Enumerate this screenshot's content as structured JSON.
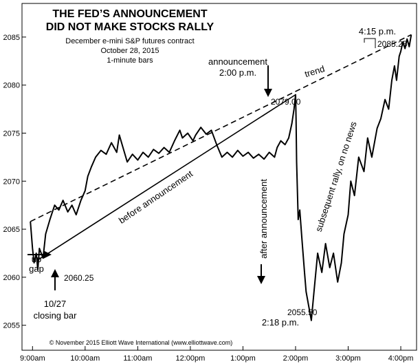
{
  "chart_data": {
    "type": "line",
    "title": [
      "THE FED’S ANNOUNCEMENT",
      "DID NOT MAKE STOCKS RALLY"
    ],
    "subtitle": [
      "December e-mini S&P futures contract",
      "October 28, 2015",
      "1-minute bars"
    ],
    "y_ticks": [
      2055,
      2060,
      2065,
      2070,
      2075,
      2080,
      2085
    ],
    "ylim": [
      2052.4,
      2088.5
    ],
    "x_tick_labels": [
      "9:00am",
      "10:00am",
      "11:00am",
      "12:00pm",
      "1:00pm",
      "2:00pm",
      "3:00pm",
      "4:00pm"
    ],
    "x_ticks_hours": [
      9,
      10,
      11,
      12,
      13,
      14,
      15,
      16
    ],
    "xlim": [
      8.8,
      16.3
    ],
    "grid": false,
    "series": [
      {
        "points": [
          [
            8.96,
            2065.8
          ],
          [
            9.0,
            2063.0
          ],
          [
            9.03,
            2061.5
          ],
          [
            9.07,
            2062.5
          ],
          [
            9.1,
            2060.8
          ],
          [
            9.13,
            2063.0
          ],
          [
            9.2,
            2062.0
          ],
          [
            9.25,
            2064.5
          ],
          [
            9.33,
            2066.0
          ],
          [
            9.42,
            2067.5
          ],
          [
            9.5,
            2067.0
          ],
          [
            9.58,
            2068.0
          ],
          [
            9.67,
            2066.8
          ],
          [
            9.75,
            2067.5
          ],
          [
            9.83,
            2066.5
          ],
          [
            9.92,
            2068.0
          ],
          [
            10.0,
            2069.0
          ],
          [
            10.05,
            2070.5
          ],
          [
            10.12,
            2071.5
          ],
          [
            10.2,
            2072.5
          ],
          [
            10.3,
            2073.2
          ],
          [
            10.4,
            2072.8
          ],
          [
            10.5,
            2074.0
          ],
          [
            10.6,
            2073.0
          ],
          [
            10.65,
            2074.8
          ],
          [
            10.72,
            2073.5
          ],
          [
            10.8,
            2072.0
          ],
          [
            10.9,
            2072.8
          ],
          [
            11.0,
            2072.2
          ],
          [
            11.1,
            2073.0
          ],
          [
            11.2,
            2072.5
          ],
          [
            11.3,
            2073.3
          ],
          [
            11.4,
            2072.9
          ],
          [
            11.5,
            2073.5
          ],
          [
            11.6,
            2073.0
          ],
          [
            11.7,
            2074.2
          ],
          [
            11.8,
            2075.3
          ],
          [
            11.85,
            2074.5
          ],
          [
            11.95,
            2075.0
          ],
          [
            12.05,
            2074.2
          ],
          [
            12.1,
            2074.8
          ],
          [
            12.2,
            2075.6
          ],
          [
            12.3,
            2074.9
          ],
          [
            12.4,
            2075.3
          ],
          [
            12.5,
            2073.8
          ],
          [
            12.6,
            2072.5
          ],
          [
            12.7,
            2073.0
          ],
          [
            12.8,
            2072.5
          ],
          [
            12.9,
            2073.2
          ],
          [
            13.0,
            2072.6
          ],
          [
            13.1,
            2073.0
          ],
          [
            13.2,
            2072.4
          ],
          [
            13.3,
            2072.8
          ],
          [
            13.4,
            2072.3
          ],
          [
            13.5,
            2073.0
          ],
          [
            13.6,
            2072.5
          ],
          [
            13.65,
            2073.5
          ],
          [
            13.72,
            2074.2
          ],
          [
            13.8,
            2073.8
          ],
          [
            13.87,
            2074.5
          ],
          [
            13.93,
            2076.0
          ],
          [
            13.97,
            2077.5
          ],
          [
            14.0,
            2079.0
          ],
          [
            14.01,
            2076.5
          ],
          [
            14.02,
            2072.0
          ],
          [
            14.05,
            2066.0
          ],
          [
            14.08,
            2067.0
          ],
          [
            14.12,
            2064.0
          ],
          [
            14.17,
            2060.5
          ],
          [
            14.2,
            2058.5
          ],
          [
            14.25,
            2057.0
          ],
          [
            14.3,
            2055.5
          ],
          [
            14.35,
            2058.5
          ],
          [
            14.42,
            2062.5
          ],
          [
            14.5,
            2060.5
          ],
          [
            14.57,
            2063.5
          ],
          [
            14.65,
            2061.0
          ],
          [
            14.72,
            2062.5
          ],
          [
            14.8,
            2059.5
          ],
          [
            14.87,
            2061.5
          ],
          [
            14.92,
            2064.5
          ],
          [
            15.0,
            2066.5
          ],
          [
            15.05,
            2070.0
          ],
          [
            15.12,
            2068.5
          ],
          [
            15.2,
            2072.5
          ],
          [
            15.3,
            2071.0
          ],
          [
            15.37,
            2074.5
          ],
          [
            15.45,
            2072.5
          ],
          [
            15.55,
            2075.5
          ],
          [
            15.62,
            2076.5
          ],
          [
            15.7,
            2078.5
          ],
          [
            15.77,
            2077.5
          ],
          [
            15.83,
            2080.5
          ],
          [
            15.88,
            2082.0
          ],
          [
            15.92,
            2080.5
          ],
          [
            15.97,
            2083.0
          ],
          [
            16.0,
            2083.5
          ],
          [
            16.04,
            2084.5
          ],
          [
            16.08,
            2083.8
          ],
          [
            16.12,
            2084.8
          ],
          [
            16.16,
            2084.0
          ],
          [
            16.2,
            2085.25
          ]
        ]
      }
    ],
    "trend_lines": [
      {
        "label": "trend",
        "style": "dashed",
        "from": [
          8.96,
          2065.8
        ],
        "to": [
          16.2,
          2085.25
        ]
      },
      {
        "label": "before announcement",
        "style": "solid",
        "from": [
          9.1,
          2061.8
        ],
        "to": [
          14.0,
          2079.0
        ]
      }
    ],
    "annotations": {
      "low_open": "2060.25",
      "announce_high": "2079.00",
      "after_low": "2055.50",
      "close_high": "2085.25",
      "announcement_label": [
        "announcement",
        "2:00 p.m."
      ],
      "after_low_time": "2:18 p.m.",
      "close_time": "4:15 p.m.",
      "trend_label": "trend",
      "before_label": "before announcement",
      "after_label": "after announcement",
      "subsequent_label": "subsequent rally, on no news",
      "gap_label": [
        "up",
        "gap"
      ],
      "closing_bar_label": [
        "10/27",
        "closing bar"
      ]
    },
    "copyright": "© November 2015 Elliott Wave International (www.elliottwave.com)"
  }
}
